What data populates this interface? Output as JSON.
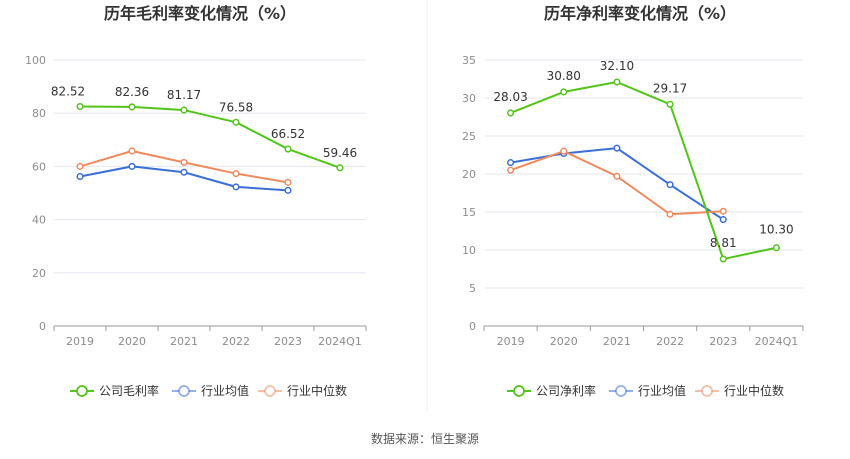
{
  "source_label": "数据来源：恒生聚源",
  "chart_data": [
    {
      "type": "line",
      "title": "历年毛利率变化情况（%）",
      "categories": [
        "2019",
        "2020",
        "2021",
        "2022",
        "2023",
        "2024Q1"
      ],
      "ylim": [
        0,
        100
      ],
      "yticks": [
        "0",
        "20",
        "40",
        "60",
        "80",
        "100"
      ],
      "grid": true,
      "legend_position": "bottom",
      "series": [
        {
          "name": "公司毛利率",
          "color": "#52c41a",
          "values": [
            82.52,
            82.36,
            81.17,
            76.58,
            66.52,
            59.46
          ],
          "labels": [
            "82.52",
            "82.36",
            "81.17",
            "76.58",
            "66.52",
            "59.46"
          ]
        },
        {
          "name": "行业均值",
          "color": "#3a6fd8",
          "values": [
            56.2,
            60.0,
            57.8,
            52.3,
            51.0,
            null
          ]
        },
        {
          "name": "行业中位数",
          "color": "#f08a5d",
          "values": [
            60.0,
            65.8,
            61.5,
            57.3,
            54.0,
            null
          ]
        }
      ]
    },
    {
      "type": "line",
      "title": "历年净利率变化情况（%）",
      "categories": [
        "2019",
        "2020",
        "2021",
        "2022",
        "2023",
        "2024Q1"
      ],
      "ylim": [
        0,
        35
      ],
      "yticks": [
        "0",
        "5",
        "10",
        "15",
        "20",
        "25",
        "30",
        "35"
      ],
      "grid": true,
      "legend_position": "bottom",
      "series": [
        {
          "name": "公司净利率",
          "color": "#52c41a",
          "values": [
            28.03,
            30.8,
            32.1,
            29.17,
            8.81,
            10.3
          ],
          "labels": [
            "28.03",
            "30.80",
            "32.10",
            "29.17",
            "8.81",
            "10.30"
          ]
        },
        {
          "name": "行业均值",
          "color": "#3a6fd8",
          "values": [
            21.5,
            22.7,
            23.4,
            18.6,
            14.0,
            null
          ]
        },
        {
          "name": "行业中位数",
          "color": "#f08a5d",
          "values": [
            20.5,
            23.0,
            19.7,
            14.7,
            15.1,
            null
          ]
        }
      ]
    }
  ]
}
